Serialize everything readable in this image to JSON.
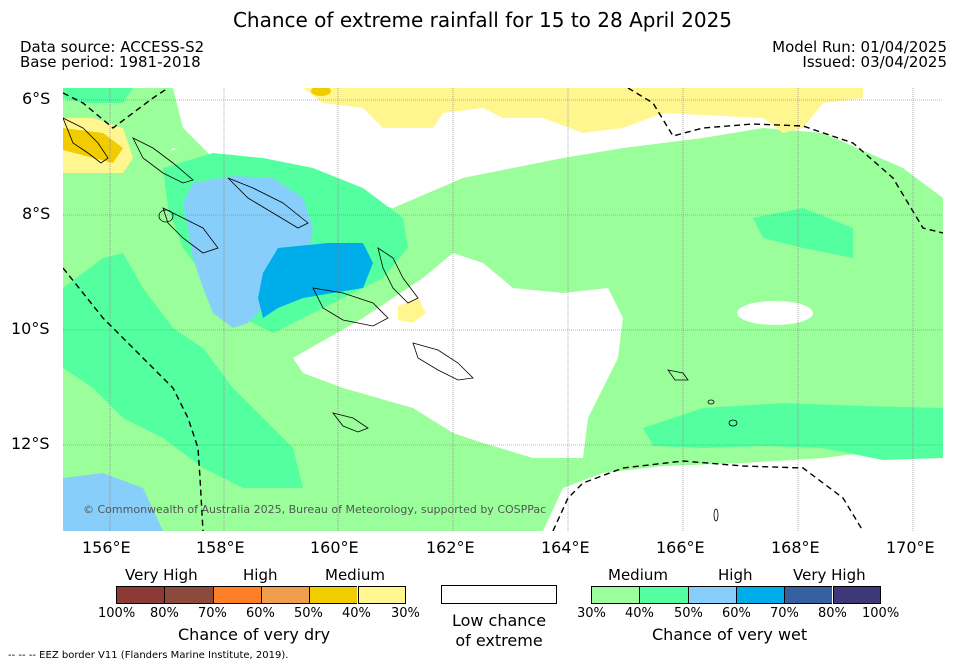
{
  "title": "Chance of extreme rainfall for 15 to 28 April 2025",
  "data_source": "Data source: ACCESS-S2",
  "base_period": "Base period: 1981-2018",
  "model_run": "Model Run: 01/04/2025",
  "issued": "Issued: 03/04/2025",
  "lat_labels": [
    "6°S",
    "8°S",
    "10°S",
    "12°S"
  ],
  "lon_labels": [
    "156°E",
    "158°E",
    "160°E",
    "162°E",
    "164°E",
    "166°E",
    "168°E",
    "170°E"
  ],
  "copyright": "© Commonwealth of Australia 2025, Bureau of Meteorology, supported by COSPPac",
  "eez_note": "--  --  -- EEZ border V11 (Flanders Marine Institute, 2019).",
  "legend_dry": {
    "categories": [
      "Very High",
      "High",
      "Medium"
    ],
    "ticks": [
      "100%",
      "80%",
      "70%",
      "60%",
      "50%",
      "40%",
      "30%"
    ],
    "colors": [
      "#8b3a36",
      "#8b4a3a",
      "#ff7f27",
      "#ef9e4c",
      "#f0cc00",
      "#fff68f"
    ],
    "caption": "Chance of very dry"
  },
  "legend_low": {
    "line1": "Low chance",
    "line2": "of extreme",
    "color": "#ffffff"
  },
  "legend_wet": {
    "categories": [
      "Medium",
      "High",
      "Very High"
    ],
    "ticks": [
      "30%",
      "40%",
      "50%",
      "60%",
      "70%",
      "80%",
      "100%"
    ],
    "colors": [
      "#9aff9a",
      "#54ffa0",
      "#87cefa",
      "#00adeb",
      "#3560a0",
      "#3d3878"
    ],
    "caption": "Chance of very wet"
  }
}
